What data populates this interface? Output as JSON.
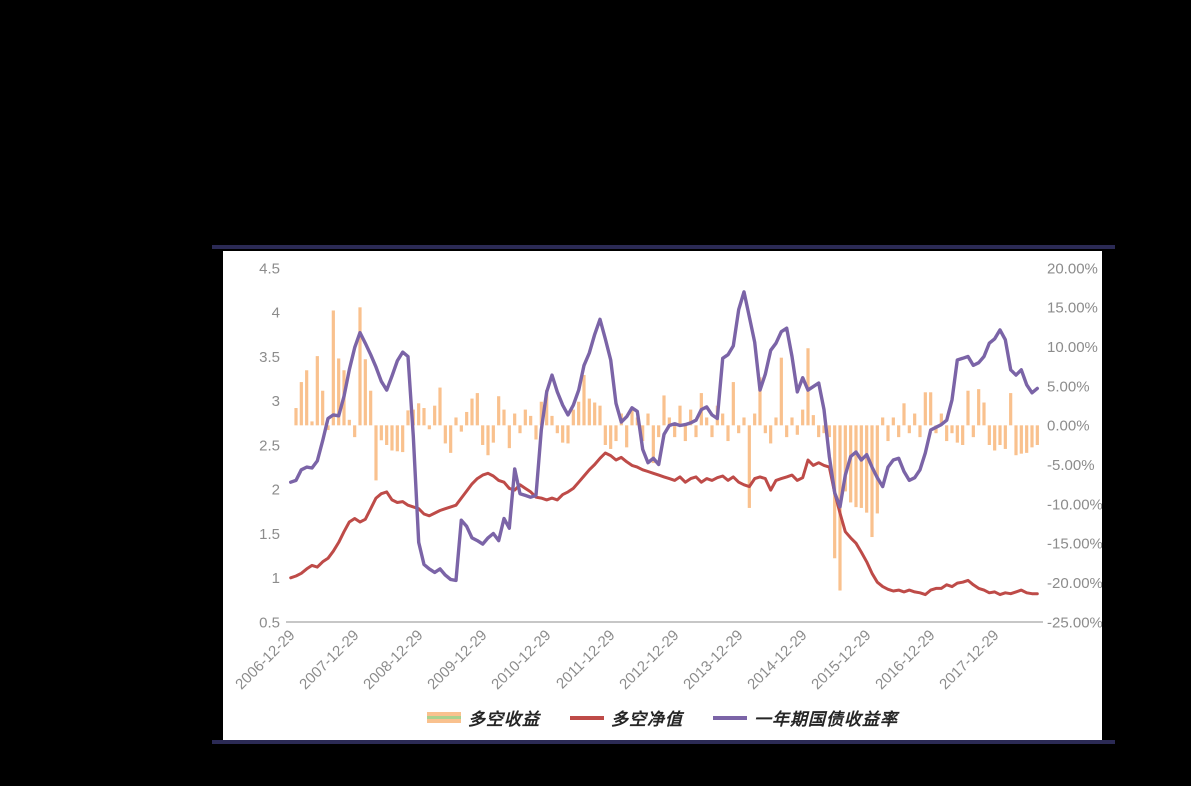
{
  "window": {
    "background": "#000000"
  },
  "colors": {
    "border_line": "#2B2A55",
    "panel_background": "#FFFFFF",
    "axis_text": "#8C8C8C",
    "baseline": "#BFBFBF",
    "legend_bar_stripe": "#A9D18E"
  },
  "legend": {
    "items": [
      {
        "label": "多空收益",
        "swatch": "bar"
      },
      {
        "label": "多空净值",
        "swatch": "line"
      },
      {
        "label": "一年期国债收益率",
        "swatch": "line"
      }
    ]
  },
  "chart_data": {
    "type": "bar+line combo",
    "title": "",
    "grid": "off",
    "legend_position": "bottom",
    "x_unit": "monthly, 2006-12 to 2018-08",
    "x_tick_every": 12,
    "x_tick_labels": [
      "2006-12-29",
      "2007-12-29",
      "2008-12-29",
      "2009-12-29",
      "2010-12-29",
      "2011-12-29",
      "2012-12-29",
      "2013-12-29",
      "2014-12-29",
      "2015-12-29",
      "2016-12-29",
      "2017-12-29"
    ],
    "left_axis": {
      "min": 0.5,
      "max": 4.5,
      "tick_labels": [
        "4.5",
        "4",
        "3.5",
        "3",
        "2.5",
        "2",
        "1.5",
        "1",
        "0.5"
      ]
    },
    "right_axis": {
      "min": -25,
      "max": 20,
      "tick_labels": [
        "20.00%",
        "15.00%",
        "10.00%",
        "5.00%",
        "0.00%",
        "-5.00%",
        "-10.00%",
        "-15.00%",
        "-20.00%",
        "-25.00%"
      ]
    },
    "series": [
      {
        "name": "多空收益",
        "type": "bar",
        "axis": "right",
        "color": "#F9C18E",
        "values_pct": [
          0,
          2.2,
          5.5,
          7.0,
          0.5,
          8.8,
          4.4,
          -0.6,
          14.6,
          8.5,
          7.0,
          0.7,
          -1.5,
          15.0,
          8.4,
          4.4,
          -7.0,
          -1.9,
          -2.5,
          -3.2,
          -3.3,
          -3.4,
          1.9,
          2.0,
          2.8,
          2.2,
          -0.5,
          2.5,
          4.8,
          -2.3,
          -3.5,
          1.0,
          -0.8,
          1.7,
          3.4,
          4.1,
          -2.5,
          -3.8,
          -2.2,
          3.7,
          2.0,
          -2.9,
          1.5,
          -1.0,
          2.0,
          1.2,
          -1.8,
          3.0,
          4.5,
          1.2,
          -1.0,
          -2.2,
          -2.3,
          2.0,
          3.0,
          6.4,
          3.4,
          2.9,
          2.5,
          -2.5,
          -3.0,
          -2.0,
          1.5,
          -2.8,
          2.0,
          1.0,
          -2.0,
          1.5,
          -4.8,
          -1.5,
          3.8,
          1.0,
          -1.5,
          2.5,
          -2.0,
          2.0,
          -1.5,
          4.1,
          1.0,
          -1.5,
          2.5,
          1.5,
          -2.0,
          5.5,
          -1.0,
          1.0,
          -10.5,
          1.5,
          6.1,
          -1.0,
          -2.3,
          1.0,
          8.6,
          -1.5,
          1.0,
          -1.2,
          2.0,
          9.8,
          1.3,
          -1.5,
          -1.0,
          -1.5,
          -16.9,
          -21.0,
          -8.4,
          -9.8,
          -10.4,
          -10.5,
          -11.1,
          -14.2,
          -11.2,
          1.0,
          -2.0,
          1.0,
          -1.5,
          2.8,
          -1.0,
          1.5,
          -1.5,
          4.2,
          4.2,
          -1.0,
          1.5,
          -2.0,
          -1.0,
          -2.2,
          -2.5,
          4.4,
          -1.5,
          4.6,
          2.9,
          -2.5,
          -3.2,
          -2.5,
          -3.0,
          4.1,
          -3.8,
          -3.6,
          -3.5,
          -2.8,
          -2.5
        ]
      },
      {
        "name": "多空净值",
        "type": "line",
        "axis": "left",
        "color": "#BE4B48",
        "values": [
          1.0,
          1.02,
          1.05,
          1.1,
          1.14,
          1.12,
          1.18,
          1.22,
          1.3,
          1.4,
          1.52,
          1.63,
          1.67,
          1.63,
          1.66,
          1.78,
          1.9,
          1.95,
          1.97,
          1.88,
          1.85,
          1.86,
          1.82,
          1.8,
          1.78,
          1.72,
          1.7,
          1.73,
          1.76,
          1.78,
          1.8,
          1.82,
          1.9,
          1.98,
          2.06,
          2.12,
          2.16,
          2.18,
          2.15,
          2.1,
          2.08,
          2.01,
          1.99,
          2.05,
          2.01,
          1.97,
          1.91,
          1.9,
          1.88,
          1.9,
          1.88,
          1.94,
          1.97,
          2.01,
          2.08,
          2.15,
          2.22,
          2.28,
          2.35,
          2.41,
          2.38,
          2.33,
          2.36,
          2.31,
          2.27,
          2.25,
          2.22,
          2.2,
          2.18,
          2.16,
          2.14,
          2.12,
          2.1,
          2.14,
          2.08,
          2.12,
          2.14,
          2.08,
          2.12,
          2.1,
          2.13,
          2.15,
          2.1,
          2.14,
          2.08,
          2.05,
          2.03,
          2.12,
          2.14,
          2.12,
          1.99,
          2.1,
          2.12,
          2.14,
          2.16,
          2.1,
          2.13,
          2.33,
          2.27,
          2.3,
          2.27,
          2.25,
          1.96,
          1.73,
          1.52,
          1.45,
          1.39,
          1.29,
          1.18,
          1.05,
          0.95,
          0.9,
          0.87,
          0.85,
          0.86,
          0.84,
          0.86,
          0.84,
          0.83,
          0.81,
          0.86,
          0.88,
          0.88,
          0.92,
          0.9,
          0.94,
          0.95,
          0.97,
          0.92,
          0.88,
          0.86,
          0.83,
          0.84,
          0.81,
          0.83,
          0.82,
          0.84,
          0.86,
          0.83,
          0.82,
          0.82
        ]
      },
      {
        "name": "一年期国债收益率",
        "type": "line",
        "axis": "left",
        "color": "#7B64A7",
        "values": [
          2.08,
          2.1,
          2.22,
          2.25,
          2.24,
          2.32,
          2.55,
          2.8,
          2.84,
          2.83,
          3.05,
          3.35,
          3.6,
          3.77,
          3.65,
          3.52,
          3.38,
          3.22,
          3.12,
          3.28,
          3.45,
          3.55,
          3.5,
          2.6,
          1.4,
          1.15,
          1.1,
          1.06,
          1.1,
          1.03,
          0.98,
          0.97,
          1.65,
          1.58,
          1.45,
          1.42,
          1.38,
          1.45,
          1.5,
          1.42,
          1.67,
          1.56,
          2.23,
          1.95,
          1.93,
          1.91,
          1.93,
          2.67,
          3.1,
          3.29,
          3.1,
          2.95,
          2.84,
          2.95,
          3.12,
          3.4,
          3.54,
          3.75,
          3.92,
          3.7,
          3.46,
          2.97,
          2.76,
          2.82,
          2.92,
          2.88,
          2.45,
          2.3,
          2.35,
          2.28,
          2.62,
          2.72,
          2.74,
          2.72,
          2.73,
          2.75,
          2.78,
          2.9,
          2.93,
          2.84,
          2.8,
          3.48,
          3.52,
          3.62,
          4.03,
          4.23,
          3.95,
          3.66,
          3.12,
          3.3,
          3.57,
          3.65,
          3.78,
          3.82,
          3.5,
          3.1,
          3.26,
          3.12,
          3.16,
          3.2,
          2.9,
          2.37,
          1.96,
          1.8,
          2.16,
          2.37,
          2.42,
          2.33,
          2.39,
          2.25,
          2.13,
          2.03,
          2.25,
          2.33,
          2.35,
          2.2,
          2.1,
          2.13,
          2.22,
          2.41,
          2.67,
          2.7,
          2.73,
          2.78,
          3.01,
          3.46,
          3.48,
          3.5,
          3.4,
          3.43,
          3.5,
          3.65,
          3.7,
          3.8,
          3.69,
          3.35,
          3.29,
          3.35,
          3.18,
          3.09,
          3.14
        ]
      }
    ]
  }
}
